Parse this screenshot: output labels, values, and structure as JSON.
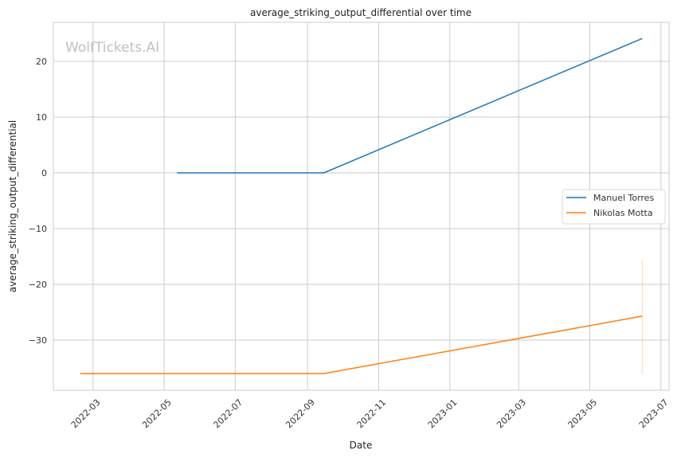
{
  "chart_data": {
    "type": "line",
    "title": "average_striking_output_differential over time",
    "xlabel": "Date",
    "ylabel": "average_striking_output_differential",
    "watermark": "WolfTickets.AI",
    "xlim": [
      "2022-01-26",
      "2023-07-08"
    ],
    "ylim": [
      -39,
      27
    ],
    "x_ticks": [
      "2022-03",
      "2022-05",
      "2022-07",
      "2022-09",
      "2022-11",
      "2023-01",
      "2023-03",
      "2023-05",
      "2023-07"
    ],
    "y_ticks": [
      -30,
      -20,
      -10,
      0,
      10,
      20
    ],
    "grid": true,
    "legend_position": "center-right",
    "series": [
      {
        "name": "Manuel Torres",
        "color": "#1f77b4",
        "points": [
          [
            "2022-05-12",
            0
          ],
          [
            "2022-09-15",
            0
          ],
          [
            "2023-06-15",
            24.1
          ]
        ]
      },
      {
        "name": "Nikolas Motta",
        "color": "#ff7f0e",
        "points": [
          [
            "2022-02-18",
            -36
          ],
          [
            "2022-09-15",
            -36
          ],
          [
            "2023-06-15",
            -25.7
          ]
        ],
        "band": {
          "date": "2023-06-15",
          "low": -36.1,
          "high": -15.5
        }
      }
    ]
  }
}
